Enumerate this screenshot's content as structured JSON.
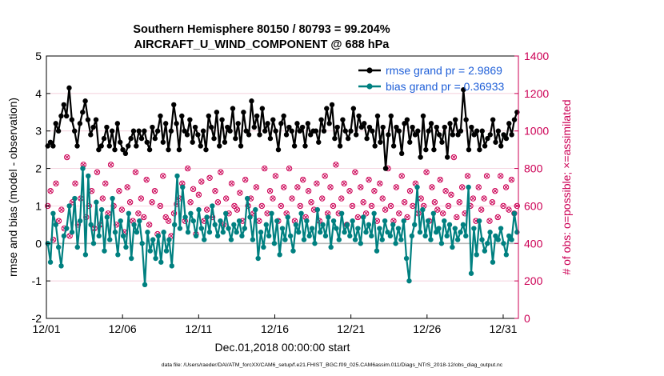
{
  "title_line1": "Southern Hemisphere 80150 / 80793 = 99.204%",
  "title_line2": "AIRCRAFT_U_WIND_COMPONENT @ 688 hPa",
  "footer": "data file: /Users/raeder/DAI/ATM_forcXX/CAM6_setup/f.e21.FHIST_BGC.f09_025.CAM6assim.011/Diags_NTrS_2018-12/obs_diag_output.nc",
  "colors": {
    "rmse": "#000000",
    "bias": "#008080",
    "obs": "#cc0055",
    "zero_line": "#bbbbbb",
    "grid": "#f0c0d0"
  },
  "chart_data": {
    "type": "line",
    "title": "Southern Hemisphere 80150 / 80793 = 99.204%",
    "subtitle": "AIRCRAFT_U_WIND_COMPONENT @ 688 hPa",
    "xlabel": "Dec.01,2018 00:00:00 start",
    "ylabel": "rmse and bias (model - observation)",
    "y2label": "# of obs: o=possible; ×=assimilated",
    "xlim": [
      0,
      31
    ],
    "ylim": [
      -2,
      5
    ],
    "y2lim": [
      0,
      1400
    ],
    "x_ticks": [
      0,
      5,
      10,
      15,
      20,
      25,
      30
    ],
    "x_tick_labels": [
      "12/01",
      "12/06",
      "12/11",
      "12/16",
      "12/21",
      "12/26",
      "12/31"
    ],
    "y_ticks": [
      -2,
      -1,
      0,
      1,
      2,
      3,
      4,
      5
    ],
    "y2_ticks": [
      0,
      200,
      400,
      600,
      800,
      1000,
      1200,
      1400
    ],
    "legend": [
      "rmse grand pr = 2.9869",
      "bias grand pr = 0.36933"
    ],
    "series": [
      {
        "name": "rmse grand pr = 2.9869",
        "axis": "left",
        "values": [
          2.6,
          2.7,
          2.6,
          3.2,
          3.0,
          3.4,
          3.7,
          3.4,
          4.15,
          3.3,
          3.0,
          2.6,
          3.2,
          3.5,
          3.8,
          3.3,
          2.9,
          3.1,
          3.3,
          2.5,
          2.6,
          2.8,
          3.1,
          2.6,
          3.0,
          2.5,
          3.2,
          2.7,
          2.5,
          2.4,
          2.6,
          2.8,
          3.0,
          2.6,
          3.0,
          2.8,
          3.0,
          2.7,
          2.5,
          3.1,
          2.8,
          3.0,
          3.4,
          2.7,
          3.2,
          2.5,
          3.0,
          3.7,
          3.2,
          2.5,
          3.4,
          3.0,
          2.9,
          3.3,
          2.7,
          3.1,
          2.9,
          2.6,
          3.0,
          2.5,
          3.4,
          3.1,
          2.8,
          3.5,
          2.6,
          3.3,
          2.7,
          3.1,
          3.0,
          3.6,
          2.8,
          3.2,
          2.6,
          3.5,
          3.0,
          2.9,
          3.8,
          3.1,
          3.4,
          2.9,
          3.6,
          3.0,
          3.2,
          2.8,
          3.3,
          3.0,
          2.5,
          3.2,
          3.4,
          2.9,
          3.1,
          3.0,
          2.6,
          3.2,
          3.0,
          3.1,
          2.6,
          3.2,
          2.9,
          3.0,
          3.0,
          2.7,
          3.3,
          3.0,
          3.6,
          3.2,
          3.7,
          2.8,
          3.1,
          2.6,
          3.3,
          3.0,
          2.8,
          3.0,
          3.6,
          2.9,
          3.4,
          3.1,
          3.2,
          2.8,
          3.1,
          3.0,
          2.6,
          3.4,
          2.7,
          3.1,
          2.0,
          2.9,
          3.4,
          2.6,
          3.1,
          3.0,
          2.4,
          3.2,
          3.3,
          2.7,
          3.1,
          2.9,
          3.0,
          2.3,
          3.4,
          2.5,
          3.0,
          3.2,
          2.5,
          3.1,
          2.9,
          2.7,
          3.1,
          2.3,
          3.2,
          2.9,
          3.3,
          2.9,
          3.0,
          4.1,
          3.3,
          2.5,
          3.1,
          2.9,
          3.0,
          2.5,
          3.0,
          2.6,
          2.8,
          2.9,
          3.3,
          2.7,
          3.0,
          2.6,
          2.9,
          2.8,
          3.2,
          2.9,
          3.3,
          3.5
        ]
      },
      {
        "name": "bias grand pr = 0.36933",
        "axis": "left",
        "values": [
          0.0,
          -0.5,
          0.8,
          0.5,
          -0.1,
          -0.6,
          0.2,
          0.4,
          1.0,
          0.3,
          1.2,
          -0.1,
          0.6,
          2.0,
          -0.3,
          1.8,
          0.5,
          0.0,
          1.1,
          0.2,
          0.9,
          -0.2,
          0.7,
          0.1,
          1.2,
          0.3,
          -0.3,
          0.6,
          0.2,
          -0.1,
          0.8,
          -0.4,
          0.5,
          0.3,
          0.6,
          0.0,
          -1.1,
          0.3,
          -0.2,
          0.1,
          -0.4,
          0.2,
          -0.5,
          0.3,
          -0.2,
          0.1,
          -0.6,
          0.5,
          1.8,
          0.4,
          1.5,
          0.7,
          0.3,
          0.8,
          0.6,
          0.2,
          0.9,
          0.4,
          0.1,
          0.7,
          0.3,
          1.0,
          0.5,
          0.2,
          0.6,
          0.3,
          0.8,
          0.4,
          0.1,
          0.5,
          0.3,
          0.6,
          0.2,
          0.4,
          1.2,
          0.7,
          0.1,
          0.9,
          -0.4,
          0.3,
          -0.1,
          0.5,
          0.2,
          0.8,
          0.0,
          0.6,
          -0.3,
          0.4,
          0.1,
          0.7,
          0.2,
          -0.2,
          0.5,
          0.3,
          0.8,
          0.1,
          0.6,
          0.2,
          0.4,
          0.0,
          0.9,
          0.3,
          0.5,
          0.2,
          0.7,
          -0.1,
          0.6,
          0.4,
          0.1,
          0.8,
          0.3,
          0.5,
          0.2,
          0.6,
          0.1,
          0.4,
          0.0,
          0.7,
          0.3,
          0.5,
          0.2,
          0.8,
          -0.2,
          0.4,
          0.1,
          0.6,
          0.3,
          0.2,
          0.5,
          0.0,
          0.4,
          0.1,
          0.6,
          -0.4,
          -1.0,
          0.2,
          0.5,
          1.5,
          0.3,
          0.9,
          0.2,
          0.6,
          0.1,
          0.8,
          0.3,
          0.4,
          0.0,
          0.6,
          0.2,
          0.5,
          -0.1,
          0.4,
          0.1,
          0.3,
          0.5,
          0.2,
          1.5,
          -0.8,
          0.4,
          -0.3,
          0.6,
          0.1,
          -0.2,
          0.0,
          0.3,
          -0.5,
          0.2,
          0.1,
          0.4,
          0.0,
          -0.3,
          0.2,
          0.1,
          0.8,
          0.3
        ]
      },
      {
        "name": "# of obs possible (o)",
        "axis": "right",
        "values": [
          600,
          680,
          420,
          720,
          520,
          580,
          480,
          860,
          440,
          620,
          720,
          500,
          640,
          820,
          540,
          600,
          680,
          480,
          780,
          500,
          640,
          720,
          560,
          820,
          600,
          500,
          680,
          580,
          460,
          700,
          620,
          520,
          780,
          560,
          640,
          540,
          740,
          500,
          620,
          680,
          450,
          600,
          760,
          540,
          520,
          440,
          560,
          610,
          640,
          720,
          520,
          800,
          620,
          690,
          450,
          660,
          730,
          520,
          580,
          750,
          540,
          680,
          620,
          780,
          500,
          640,
          560,
          720,
          600,
          580,
          670,
          520,
          740,
          600,
          640,
          560,
          700,
          520,
          600,
          800,
          560,
          680,
          640,
          760,
          520,
          600,
          700,
          560,
          800,
          640,
          520,
          700,
          600,
          740,
          540,
          680,
          620,
          580,
          720,
          520,
          640,
          760,
          560,
          700,
          600,
          820,
          560,
          640,
          720,
          500,
          680,
          600,
          780,
          540,
          700,
          620,
          560,
          740,
          600,
          680,
          520,
          720,
          640,
          580,
          800,
          600,
          520,
          700,
          560,
          760,
          620,
          540,
          680,
          600,
          720,
          560,
          640,
          600,
          780,
          520,
          700,
          620,
          580,
          740,
          560,
          680,
          600,
          660,
          860,
          540,
          620,
          700,
          560,
          760,
          600,
          640,
          520,
          700,
          580,
          640,
          760,
          520,
          620,
          680,
          540,
          760,
          600,
          700,
          580,
          740,
          560,
          600
        ]
      }
    ]
  }
}
